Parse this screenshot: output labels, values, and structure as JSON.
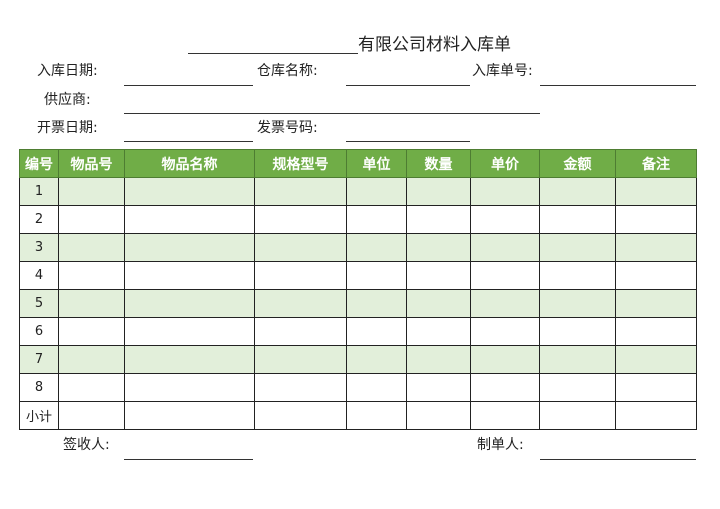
{
  "title": "有限公司材料入库单",
  "fields": {
    "entry_date": "入库日期:",
    "warehouse": "仓库名称:",
    "entry_no": "入库单号:",
    "supplier": "供应商:",
    "invoice_date": "开票日期:",
    "invoice_no": "发票号码:"
  },
  "table": {
    "headers": [
      "编号",
      "物品号",
      "物品名称",
      "规格型号",
      "单位",
      "数量",
      "单价",
      "金额",
      "备注"
    ],
    "rows": [
      "1",
      "2",
      "3",
      "4",
      "5",
      "6",
      "7",
      "8",
      "小计"
    ]
  },
  "footer": {
    "receiver": "签收人:",
    "maker": "制单人:"
  },
  "colors": {
    "header": "#70ad47",
    "shade": "#e2efda"
  }
}
